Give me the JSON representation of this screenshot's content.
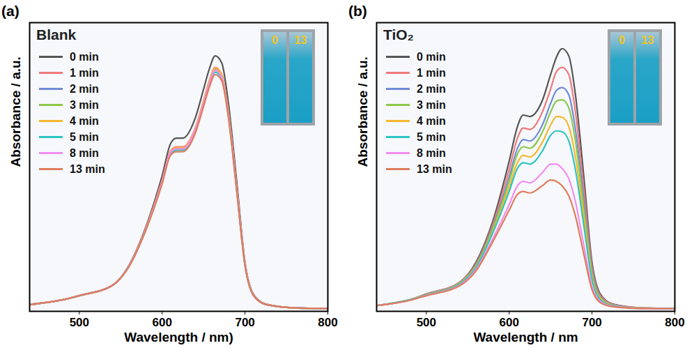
{
  "chart_data": [
    {
      "type": "line",
      "panel_label": "(a)",
      "title": "Blank",
      "x_label": "Wavelength / nm)",
      "y_label": "Absorbance / a.u.",
      "xlim": [
        440,
        800
      ],
      "xticks": [
        500,
        600,
        700,
        800
      ],
      "ylim": [
        0,
        1
      ],
      "yticks": [],
      "tick_labels": "x",
      "grid": false,
      "legend": "top-left",
      "annotations": [
        "0",
        "13"
      ],
      "x": [
        440,
        480,
        500,
        540,
        560,
        580,
        600,
        610,
        617,
        625,
        640,
        650,
        657,
        664,
        672,
        680,
        690,
        700,
        710,
        725,
        760,
        800
      ],
      "series": [
        {
          "name": "0 min",
          "color": "#555555",
          "values": [
            0.024,
            0.04,
            0.055,
            0.09,
            0.16,
            0.29,
            0.47,
            0.58,
            0.6,
            0.6,
            0.67,
            0.77,
            0.84,
            0.885,
            0.86,
            0.72,
            0.45,
            0.17,
            0.06,
            0.025,
            0.012,
            0.01
          ]
        },
        {
          "name": "1 min",
          "color": "#f07a7a",
          "values": [
            0.024,
            0.04,
            0.055,
            0.09,
            0.158,
            0.285,
            0.455,
            0.555,
            0.57,
            0.57,
            0.635,
            0.73,
            0.8,
            0.845,
            0.82,
            0.69,
            0.43,
            0.165,
            0.058,
            0.025,
            0.012,
            0.01
          ]
        },
        {
          "name": "2 min",
          "color": "#6f8bd6",
          "values": [
            0.023,
            0.04,
            0.054,
            0.09,
            0.157,
            0.283,
            0.45,
            0.55,
            0.565,
            0.565,
            0.63,
            0.725,
            0.795,
            0.84,
            0.815,
            0.685,
            0.425,
            0.163,
            0.057,
            0.024,
            0.012,
            0.01
          ]
        },
        {
          "name": "3 min",
          "color": "#8cc84b",
          "values": [
            0.023,
            0.04,
            0.054,
            0.09,
            0.157,
            0.282,
            0.448,
            0.548,
            0.562,
            0.562,
            0.627,
            0.722,
            0.79,
            0.835,
            0.812,
            0.682,
            0.423,
            0.162,
            0.057,
            0.024,
            0.012,
            0.01
          ]
        },
        {
          "name": "4 min",
          "color": "#f5b82e",
          "values": [
            0.023,
            0.04,
            0.054,
            0.09,
            0.157,
            0.284,
            0.452,
            0.552,
            0.567,
            0.567,
            0.632,
            0.728,
            0.797,
            0.842,
            0.818,
            0.688,
            0.428,
            0.164,
            0.057,
            0.024,
            0.012,
            0.01
          ]
        },
        {
          "name": "5 min",
          "color": "#2ec4c4",
          "values": [
            0.023,
            0.04,
            0.054,
            0.09,
            0.156,
            0.28,
            0.445,
            0.545,
            0.558,
            0.558,
            0.622,
            0.715,
            0.783,
            0.828,
            0.805,
            0.676,
            0.42,
            0.16,
            0.056,
            0.024,
            0.012,
            0.01
          ]
        },
        {
          "name": "8 min",
          "color": "#f28cf0",
          "values": [
            0.023,
            0.04,
            0.054,
            0.09,
            0.157,
            0.282,
            0.45,
            0.55,
            0.563,
            0.563,
            0.628,
            0.722,
            0.79,
            0.835,
            0.81,
            0.68,
            0.424,
            0.162,
            0.057,
            0.024,
            0.012,
            0.01
          ]
        },
        {
          "name": "13 min",
          "color": "#e07c5c",
          "values": [
            0.023,
            0.04,
            0.054,
            0.09,
            0.155,
            0.279,
            0.442,
            0.54,
            0.553,
            0.553,
            0.617,
            0.71,
            0.777,
            0.82,
            0.798,
            0.67,
            0.417,
            0.158,
            0.056,
            0.024,
            0.012,
            0.01
          ]
        }
      ]
    },
    {
      "type": "line",
      "panel_label": "(b)",
      "title": "TiO₂",
      "x_label": "Wavelength / nm",
      "y_label": "Absorbance / a.u.",
      "xlim": [
        440,
        800
      ],
      "xticks": [
        500,
        600,
        700,
        800
      ],
      "ylim": [
        0,
        1
      ],
      "yticks": [],
      "tick_labels": "x",
      "grid": false,
      "legend": "top-left",
      "annotations": [
        "0",
        "13"
      ],
      "x": [
        440,
        480,
        500,
        540,
        560,
        580,
        600,
        610,
        617,
        625,
        640,
        650,
        657,
        664,
        672,
        680,
        690,
        700,
        710,
        725,
        760,
        800
      ],
      "series": [
        {
          "name": "0 min",
          "color": "#555555",
          "values": [
            0.02,
            0.04,
            0.06,
            0.1,
            0.17,
            0.31,
            0.52,
            0.64,
            0.68,
            0.675,
            0.73,
            0.82,
            0.88,
            0.91,
            0.885,
            0.75,
            0.47,
            0.17,
            0.06,
            0.025,
            0.012,
            0.01
          ]
        },
        {
          "name": "1 min",
          "color": "#f07a7a",
          "values": [
            0.02,
            0.04,
            0.06,
            0.1,
            0.165,
            0.3,
            0.49,
            0.6,
            0.635,
            0.63,
            0.69,
            0.77,
            0.83,
            0.845,
            0.82,
            0.69,
            0.43,
            0.155,
            0.055,
            0.024,
            0.012,
            0.01
          ]
        },
        {
          "name": "2 min",
          "color": "#6f8bd6",
          "values": [
            0.02,
            0.04,
            0.058,
            0.098,
            0.16,
            0.29,
            0.465,
            0.565,
            0.595,
            0.59,
            0.645,
            0.72,
            0.765,
            0.775,
            0.75,
            0.63,
            0.39,
            0.14,
            0.05,
            0.022,
            0.011,
            0.01
          ]
        },
        {
          "name": "3 min",
          "color": "#8cc84b",
          "values": [
            0.02,
            0.04,
            0.058,
            0.097,
            0.158,
            0.285,
            0.45,
            0.545,
            0.57,
            0.565,
            0.62,
            0.69,
            0.728,
            0.733,
            0.705,
            0.59,
            0.36,
            0.13,
            0.047,
            0.021,
            0.011,
            0.01
          ]
        },
        {
          "name": "4 min",
          "color": "#f5b82e",
          "values": [
            0.02,
            0.04,
            0.057,
            0.095,
            0.155,
            0.275,
            0.43,
            0.515,
            0.54,
            0.535,
            0.585,
            0.645,
            0.675,
            0.672,
            0.64,
            0.535,
            0.33,
            0.12,
            0.044,
            0.02,
            0.011,
            0.01
          ]
        },
        {
          "name": "5 min",
          "color": "#2ec4c4",
          "values": [
            0.02,
            0.04,
            0.057,
            0.094,
            0.152,
            0.27,
            0.415,
            0.495,
            0.515,
            0.51,
            0.555,
            0.61,
            0.625,
            0.622,
            0.59,
            0.49,
            0.3,
            0.11,
            0.04,
            0.019,
            0.01,
            0.01
          ]
        },
        {
          "name": "8 min",
          "color": "#f28cf0",
          "values": [
            0.02,
            0.038,
            0.055,
            0.09,
            0.145,
            0.25,
            0.37,
            0.435,
            0.45,
            0.445,
            0.48,
            0.51,
            0.51,
            0.495,
            0.46,
            0.38,
            0.23,
            0.085,
            0.034,
            0.017,
            0.01,
            0.009
          ]
        },
        {
          "name": "13 min",
          "color": "#e07c5c",
          "values": [
            0.02,
            0.038,
            0.054,
            0.088,
            0.14,
            0.24,
            0.35,
            0.405,
            0.415,
            0.41,
            0.435,
            0.455,
            0.45,
            0.435,
            0.4,
            0.33,
            0.2,
            0.075,
            0.03,
            0.016,
            0.01,
            0.009
          ]
        }
      ]
    }
  ]
}
